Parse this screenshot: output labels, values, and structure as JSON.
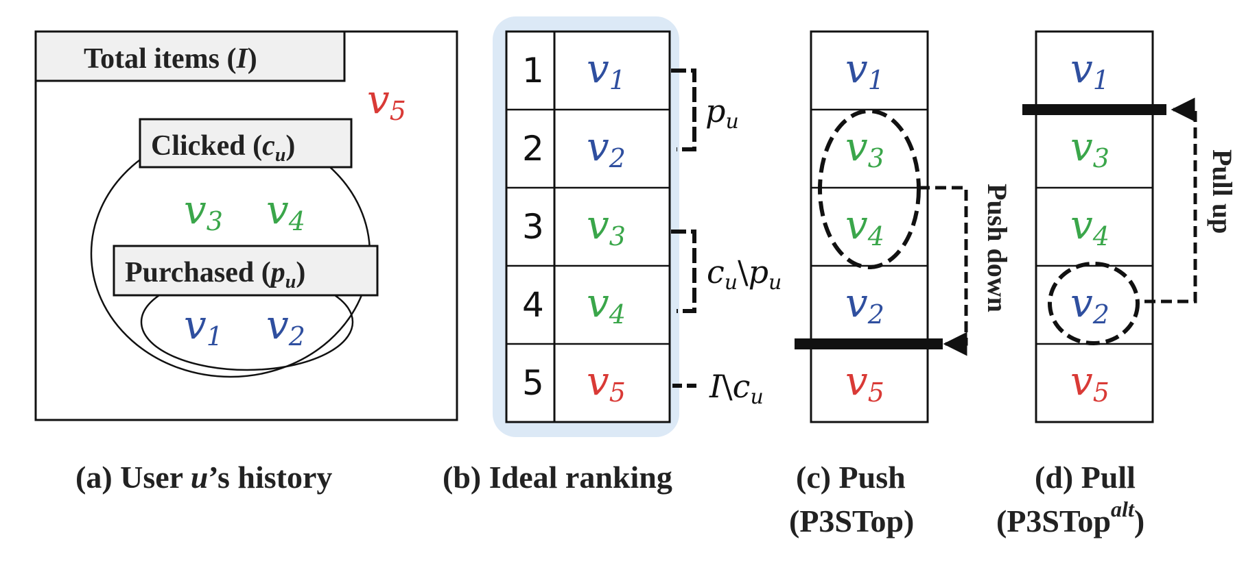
{
  "colors": {
    "purchased": "#2f4f9f",
    "clicked": "#3aa64a",
    "other": "#d93a36",
    "panel_highlight": "#dce9f6",
    "ink": "#111111"
  },
  "panel_a": {
    "total_label": "Total items (",
    "total_symbol": "I",
    "total_close": ")",
    "clicked_label": "Clicked (",
    "clicked_symbol": "c",
    "clicked_sub": "u",
    "clicked_close": ")",
    "purchased_label": "Purchased (",
    "purchased_symbol": "p",
    "purchased_sub": "u",
    "purchased_close": ")",
    "items_outside": {
      "sym": "v",
      "sub": "5"
    },
    "items_clicked": [
      {
        "sym": "v",
        "sub": "3"
      },
      {
        "sym": "v",
        "sub": "4"
      }
    ],
    "items_purchased": [
      {
        "sym": "v",
        "sub": "1"
      },
      {
        "sym": "v",
        "sub": "2"
      }
    ],
    "caption_a": "(a) User ",
    "caption_var": "u",
    "caption_b": "’s history"
  },
  "panel_b": {
    "ranks": [
      "1",
      "2",
      "3",
      "4",
      "5"
    ],
    "items": [
      {
        "sym": "v",
        "sub": "1"
      },
      {
        "sym": "v",
        "sub": "2"
      },
      {
        "sym": "v",
        "sub": "3"
      },
      {
        "sym": "v",
        "sub": "4"
      },
      {
        "sym": "v",
        "sub": "5"
      }
    ],
    "brace_pu": {
      "sym": "p",
      "sub": "u"
    },
    "brace_cu_pu": {
      "sym1": "c",
      "sub1": "u",
      "sep": "\\",
      "sym2": "p",
      "sub2": "u"
    },
    "brace_i_cu": {
      "sym1": "I",
      "sep": "\\",
      "sym2": "c",
      "sub2": "u"
    },
    "caption": "(b) Ideal ranking"
  },
  "panel_c": {
    "items": [
      {
        "sym": "v",
        "sub": "1"
      },
      {
        "sym": "v",
        "sub": "3"
      },
      {
        "sym": "v",
        "sub": "4"
      },
      {
        "sym": "v",
        "sub": "2"
      },
      {
        "sym": "v",
        "sub": "5"
      }
    ],
    "arrow_label": "Push down",
    "caption_line1": "(c) Push",
    "caption_line2": "(P3STop)"
  },
  "panel_d": {
    "items": [
      {
        "sym": "v",
        "sub": "1"
      },
      {
        "sym": "v",
        "sub": "3"
      },
      {
        "sym": "v",
        "sub": "4"
      },
      {
        "sym": "v",
        "sub": "2"
      },
      {
        "sym": "v",
        "sub": "5"
      }
    ],
    "arrow_label": "Pull up",
    "caption_line1": "(d) Pull",
    "caption_line2_main": "(P3STop",
    "caption_line2_sup": "alt",
    "caption_line2_close": ")"
  }
}
